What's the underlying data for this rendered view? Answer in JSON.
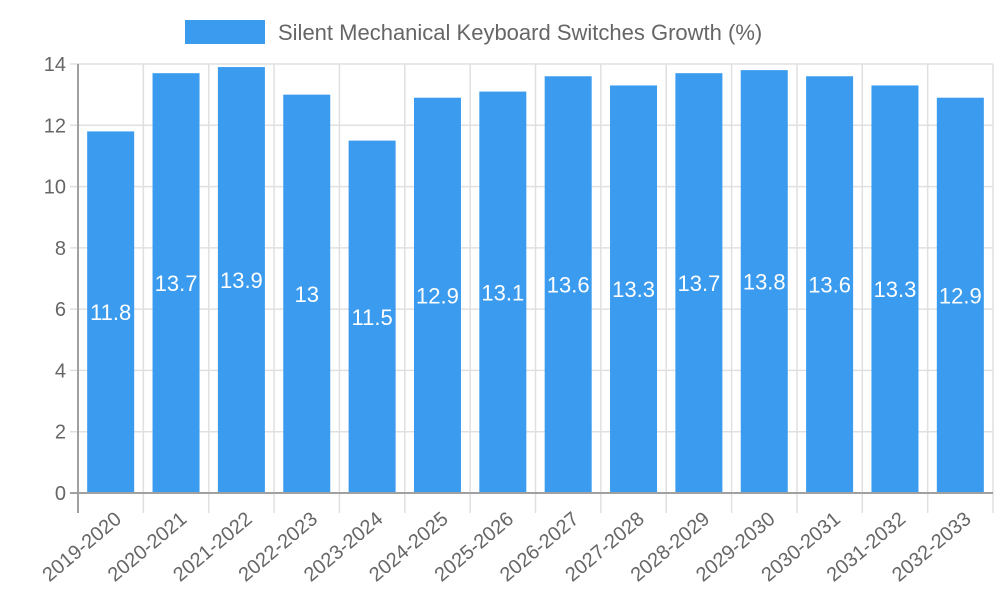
{
  "chart_data": {
    "type": "bar",
    "title": "",
    "legend": [
      {
        "label": "Silent Mechanical Keyboard Switches Growth (%)",
        "color": "#3a9bef"
      }
    ],
    "legend_position": "top",
    "xlabel": "",
    "ylabel": "",
    "categories": [
      "2019-2020",
      "2020-2021",
      "2021-2022",
      "2022-2023",
      "2023-2024",
      "2024-2025",
      "2025-2026",
      "2026-2027",
      "2027-2028",
      "2028-2029",
      "2029-2030",
      "2030-2031",
      "2031-2032",
      "2032-2033"
    ],
    "series": [
      {
        "name": "Silent Mechanical Keyboard Switches Growth (%)",
        "color": "#3a9bef",
        "values": [
          11.8,
          13.7,
          13.9,
          13,
          11.5,
          12.9,
          13.1,
          13.6,
          13.3,
          13.7,
          13.8,
          13.6,
          13.3,
          12.9
        ]
      }
    ],
    "value_labels": [
      "11.8",
      "13.7",
      "13.9",
      "13",
      "11.5",
      "12.9",
      "13.1",
      "13.6",
      "13.3",
      "13.7",
      "13.8",
      "13.6",
      "13.3",
      "12.9"
    ],
    "ylim": [
      0,
      14
    ],
    "yticks": [
      0,
      2,
      4,
      6,
      8,
      10,
      12,
      14
    ],
    "grid": true
  }
}
